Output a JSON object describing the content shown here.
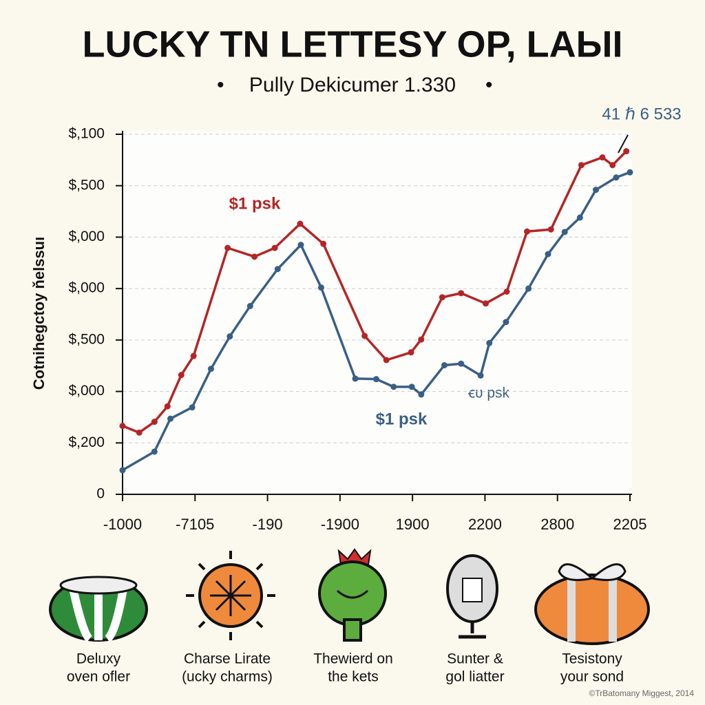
{
  "chart_data": {
    "type": "line",
    "title": "LUCKY TN LETTESY OP, LAЫI",
    "subtitle": "Pully Dekicumer 1.330",
    "y_label": "Cotnihegctoy ňelssuı",
    "xlim": [
      0,
      7
    ],
    "xticks": [
      {
        "value": 0,
        "label": "-1000"
      },
      {
        "value": 1,
        "label": "-7105"
      },
      {
        "value": 2,
        "label": "-190"
      },
      {
        "value": 3,
        "label": "-1900"
      },
      {
        "value": 4,
        "label": "1900"
      },
      {
        "value": 5,
        "label": "2200"
      },
      {
        "value": 6,
        "label": "2800"
      },
      {
        "value": 7,
        "label": "2205"
      }
    ],
    "ylim": [
      0,
      7
    ],
    "yticks": [
      0,
      {
        "value": 1,
        "label": "$,200"
      },
      {
        "value": 2,
        "label": "$,000"
      },
      {
        "value": 3,
        "label": "$,500"
      },
      {
        "value": 4,
        "label": "$,000"
      },
      {
        "value": 5,
        "label": "$,000"
      },
      {
        "value": 6,
        "label": "$,500"
      },
      {
        "value": 7,
        "label": "$,100"
      }
    ],
    "grid": true,
    "series": [
      {
        "color": "#b52525",
        "x": [
          0,
          0.23,
          0.44,
          0.62,
          0.81,
          0.98,
          1.45,
          1.82,
          2.1,
          2.45,
          2.77,
          3.34,
          3.64,
          3.98,
          4.12,
          4.41,
          4.67,
          5.01,
          5.3,
          5.58,
          5.91,
          6.33,
          6.62,
          6.76,
          6.95
        ],
        "values": [
          1.33,
          1.2,
          1.41,
          1.71,
          2.32,
          2.69,
          4.79,
          4.62,
          4.79,
          5.26,
          4.87,
          3.08,
          2.61,
          2.76,
          3.01,
          3.83,
          3.91,
          3.71,
          3.94,
          5.11,
          5.15,
          6.4,
          6.55,
          6.4,
          6.67
        ]
      },
      {
        "color": "#3a5f85",
        "x": [
          0,
          0.44,
          0.66,
          0.96,
          1.22,
          1.48,
          1.76,
          2.14,
          2.46,
          2.74,
          3.21,
          3.5,
          3.74,
          3.99,
          4.12,
          4.44,
          4.67,
          4.94,
          5.06,
          5.29,
          5.6,
          5.87,
          6.1,
          6.31,
          6.53,
          6.81,
          7
        ],
        "values": [
          0.47,
          0.83,
          1.47,
          1.69,
          2.44,
          3.07,
          3.66,
          4.38,
          4.85,
          4.02,
          2.25,
          2.24,
          2.09,
          2.09,
          1.94,
          2.51,
          2.54,
          2.31,
          2.94,
          3.35,
          4,
          4.67,
          5.1,
          5.38,
          5.92,
          6.16,
          6.26
        ]
      }
    ],
    "annotations": [
      "$1 psk",
      "$1 psk",
      "ꞓυ psk",
      "41 ℏ 6 533"
    ],
    "icons": [
      [
        "Deluxy",
        "oven ofler"
      ],
      [
        "Charse Lirate",
        "(ucky charms)"
      ],
      [
        "Thewierd on",
        "the kets"
      ],
      [
        "Sunter &",
        "gol liatter"
      ],
      [
        "Tesistony",
        "your sond"
      ]
    ],
    "footer": "©TrBatomany Miggest, 2014"
  }
}
